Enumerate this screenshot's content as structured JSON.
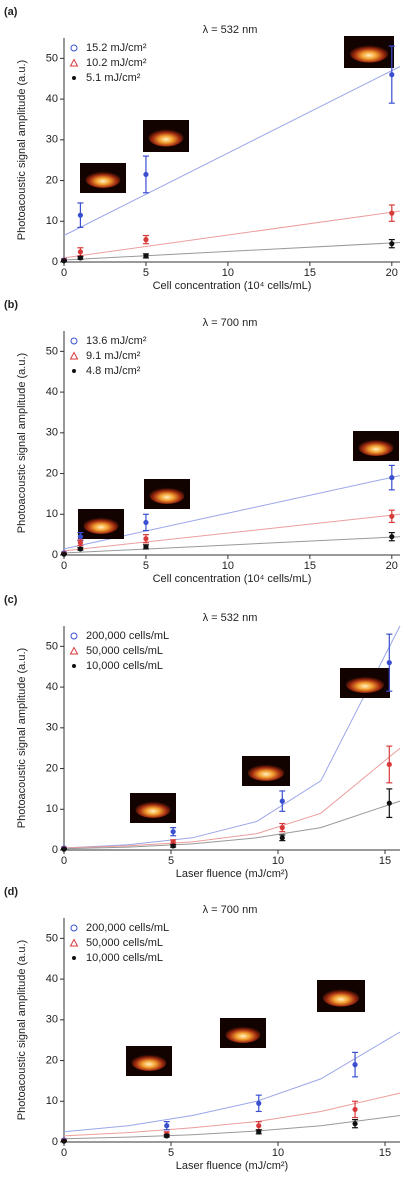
{
  "chart_data": [
    {
      "type": "scatter",
      "panel_label": "(a)",
      "title": "λ = 532 nm",
      "xlabel": "Cell concentration (10⁴ cells/mL)",
      "ylabel": "Photoacoustic signal amplitude (a.u.)",
      "xlim": [
        0,
        20.5
      ],
      "ylim": [
        0,
        55
      ],
      "xticks": [
        0,
        5,
        10,
        15,
        20
      ],
      "yticks": [
        0,
        10,
        20,
        30,
        40,
        50
      ],
      "x": [
        0,
        1,
        5,
        20
      ],
      "series": [
        {
          "name": "15.2 mJ/cm²",
          "color": "#3a4fd0",
          "marker": "circle",
          "values": [
            0.5,
            11.5,
            21.5,
            46
          ],
          "errors": [
            0.3,
            3,
            4.5,
            7
          ]
        },
        {
          "name": "10.2 mJ/cm²",
          "color": "#d83a3a",
          "marker": "triangle",
          "values": [
            0.4,
            2.5,
            5.5,
            12
          ],
          "errors": [
            0.2,
            1,
            1,
            2
          ]
        },
        {
          "name": "5.1 mJ/cm²",
          "color": "#111111",
          "marker": "dot",
          "values": [
            0.3,
            1,
            1.5,
            4.5
          ],
          "errors": [
            0.1,
            0.3,
            0.5,
            1
          ]
        }
      ],
      "fits": [
        {
          "color": "#9aa6e8",
          "x": [
            0,
            20.5
          ],
          "values": [
            6.5,
            48
          ]
        },
        {
          "color": "#ec9d9d",
          "x": [
            0,
            20.5
          ],
          "values": [
            1,
            12.5
          ]
        },
        {
          "color": "#999999",
          "x": [
            0,
            20.5
          ],
          "values": [
            0.5,
            4.8
          ]
        }
      ]
    },
    {
      "type": "scatter",
      "panel_label": "(b)",
      "title": "λ = 700 nm",
      "xlabel": "Cell concentration (10⁴ cells/mL)",
      "ylabel": "Photoacoustic signal amplitude (a.u.)",
      "xlim": [
        0,
        20.5
      ],
      "ylim": [
        0,
        55
      ],
      "xticks": [
        0,
        5,
        10,
        15,
        20
      ],
      "yticks": [
        0,
        10,
        20,
        30,
        40,
        50
      ],
      "x": [
        0,
        1,
        5,
        20
      ],
      "series": [
        {
          "name": "13.6 mJ/cm²",
          "color": "#3a4fd0",
          "marker": "circle",
          "values": [
            0.5,
            4.5,
            8,
            19
          ],
          "errors": [
            0.2,
            1,
            2,
            3
          ]
        },
        {
          "name": "9.1 mJ/cm²",
          "color": "#d83a3a",
          "marker": "triangle",
          "values": [
            0.3,
            3,
            4,
            9.5
          ],
          "errors": [
            0.2,
            0.7,
            1,
            1.5
          ]
        },
        {
          "name": "4.8 mJ/cm²",
          "color": "#111111",
          "marker": "dot",
          "values": [
            0.2,
            1.5,
            2,
            4.5
          ],
          "errors": [
            0.1,
            0.3,
            0.5,
            1
          ]
        }
      ],
      "fits": [
        {
          "color": "#9aa6e8",
          "x": [
            0,
            20.5
          ],
          "values": [
            1.5,
            19.5
          ]
        },
        {
          "color": "#ec9d9d",
          "x": [
            0,
            20.5
          ],
          "values": [
            1,
            10
          ]
        },
        {
          "color": "#999999",
          "x": [
            0,
            20.5
          ],
          "values": [
            0.5,
            4.5
          ]
        }
      ]
    },
    {
      "type": "scatter",
      "panel_label": "(c)",
      "title": "λ = 532 nm",
      "xlabel": "Laser fluence (mJ/cm²)",
      "ylabel": "Photoacoustic signal amplitude (a.u.)",
      "xlim": [
        0,
        15.7
      ],
      "ylim": [
        0,
        55
      ],
      "xticks": [
        0,
        5,
        10,
        15
      ],
      "yticks": [
        0,
        10,
        20,
        30,
        40,
        50
      ],
      "x": [
        0,
        5.1,
        10.2,
        15.2
      ],
      "series": [
        {
          "name": "200,000 cells/mL",
          "color": "#3a4fd0",
          "marker": "circle",
          "values": [
            0.5,
            4.5,
            12,
            46
          ],
          "errors": [
            0.2,
            1,
            2.5,
            7
          ]
        },
        {
          "name": "50,000 cells/mL",
          "color": "#d83a3a",
          "marker": "triangle",
          "values": [
            0.3,
            2,
            5.5,
            21
          ],
          "errors": [
            0.2,
            0.5,
            1,
            4.5
          ]
        },
        {
          "name": "10,000 cells/mL",
          "color": "#111111",
          "marker": "dot",
          "values": [
            0.2,
            1,
            3,
            11.5
          ],
          "errors": [
            0.1,
            0.3,
            0.7,
            3.5
          ]
        }
      ],
      "fits": [
        {
          "color": "#9aa6e8",
          "x": [
            0,
            3,
            6,
            9,
            12,
            15.7
          ],
          "values": [
            0.5,
            1.3,
            3,
            7,
            17,
            55
          ]
        },
        {
          "color": "#ec9d9d",
          "x": [
            0,
            3,
            6,
            9,
            12,
            15.7
          ],
          "values": [
            0.5,
            1,
            2,
            4,
            9,
            25
          ]
        },
        {
          "color": "#999999",
          "x": [
            0,
            3,
            6,
            9,
            12,
            15.7
          ],
          "values": [
            0.3,
            0.7,
            1.5,
            3,
            5.5,
            12
          ]
        }
      ]
    },
    {
      "type": "scatter",
      "panel_label": "(d)",
      "title": "λ = 700 nm",
      "xlabel": "Laser fluence (mJ/cm²)",
      "ylabel": "Photoacoustic signal amplitude (a.u.)",
      "xlim": [
        0,
        15.7
      ],
      "ylim": [
        0,
        55
      ],
      "xticks": [
        0,
        5,
        10,
        15
      ],
      "yticks": [
        0,
        10,
        20,
        30,
        40,
        50
      ],
      "x": [
        0,
        4.8,
        9.1,
        13.6
      ],
      "series": [
        {
          "name": "200,000 cells/mL",
          "color": "#3a4fd0",
          "marker": "circle",
          "values": [
            0.5,
            4,
            9.5,
            19
          ],
          "errors": [
            0.2,
            1,
            2,
            3
          ]
        },
        {
          "name": "50,000 cells/mL",
          "color": "#d83a3a",
          "marker": "triangle",
          "values": [
            0.3,
            2,
            4,
            8
          ],
          "errors": [
            0.2,
            0.5,
            1,
            2
          ]
        },
        {
          "name": "10,000 cells/mL",
          "color": "#111111",
          "marker": "dot",
          "values": [
            0.2,
            1.5,
            2.5,
            4.5
          ],
          "errors": [
            0.1,
            0.3,
            0.5,
            1
          ]
        }
      ],
      "fits": [
        {
          "color": "#9aa6e8",
          "x": [
            0,
            3,
            6,
            9,
            12,
            15.7
          ],
          "values": [
            2.5,
            4,
            6.5,
            10,
            15.5,
            27
          ]
        },
        {
          "color": "#ec9d9d",
          "x": [
            0,
            3,
            6,
            9,
            12,
            15.7
          ],
          "values": [
            1.5,
            2.3,
            3.5,
            5,
            7.5,
            12
          ]
        },
        {
          "color": "#999999",
          "x": [
            0,
            3,
            6,
            9,
            12,
            15.7
          ],
          "values": [
            0.8,
            1.2,
            1.8,
            2.7,
            4,
            6.5
          ]
        }
      ]
    }
  ]
}
